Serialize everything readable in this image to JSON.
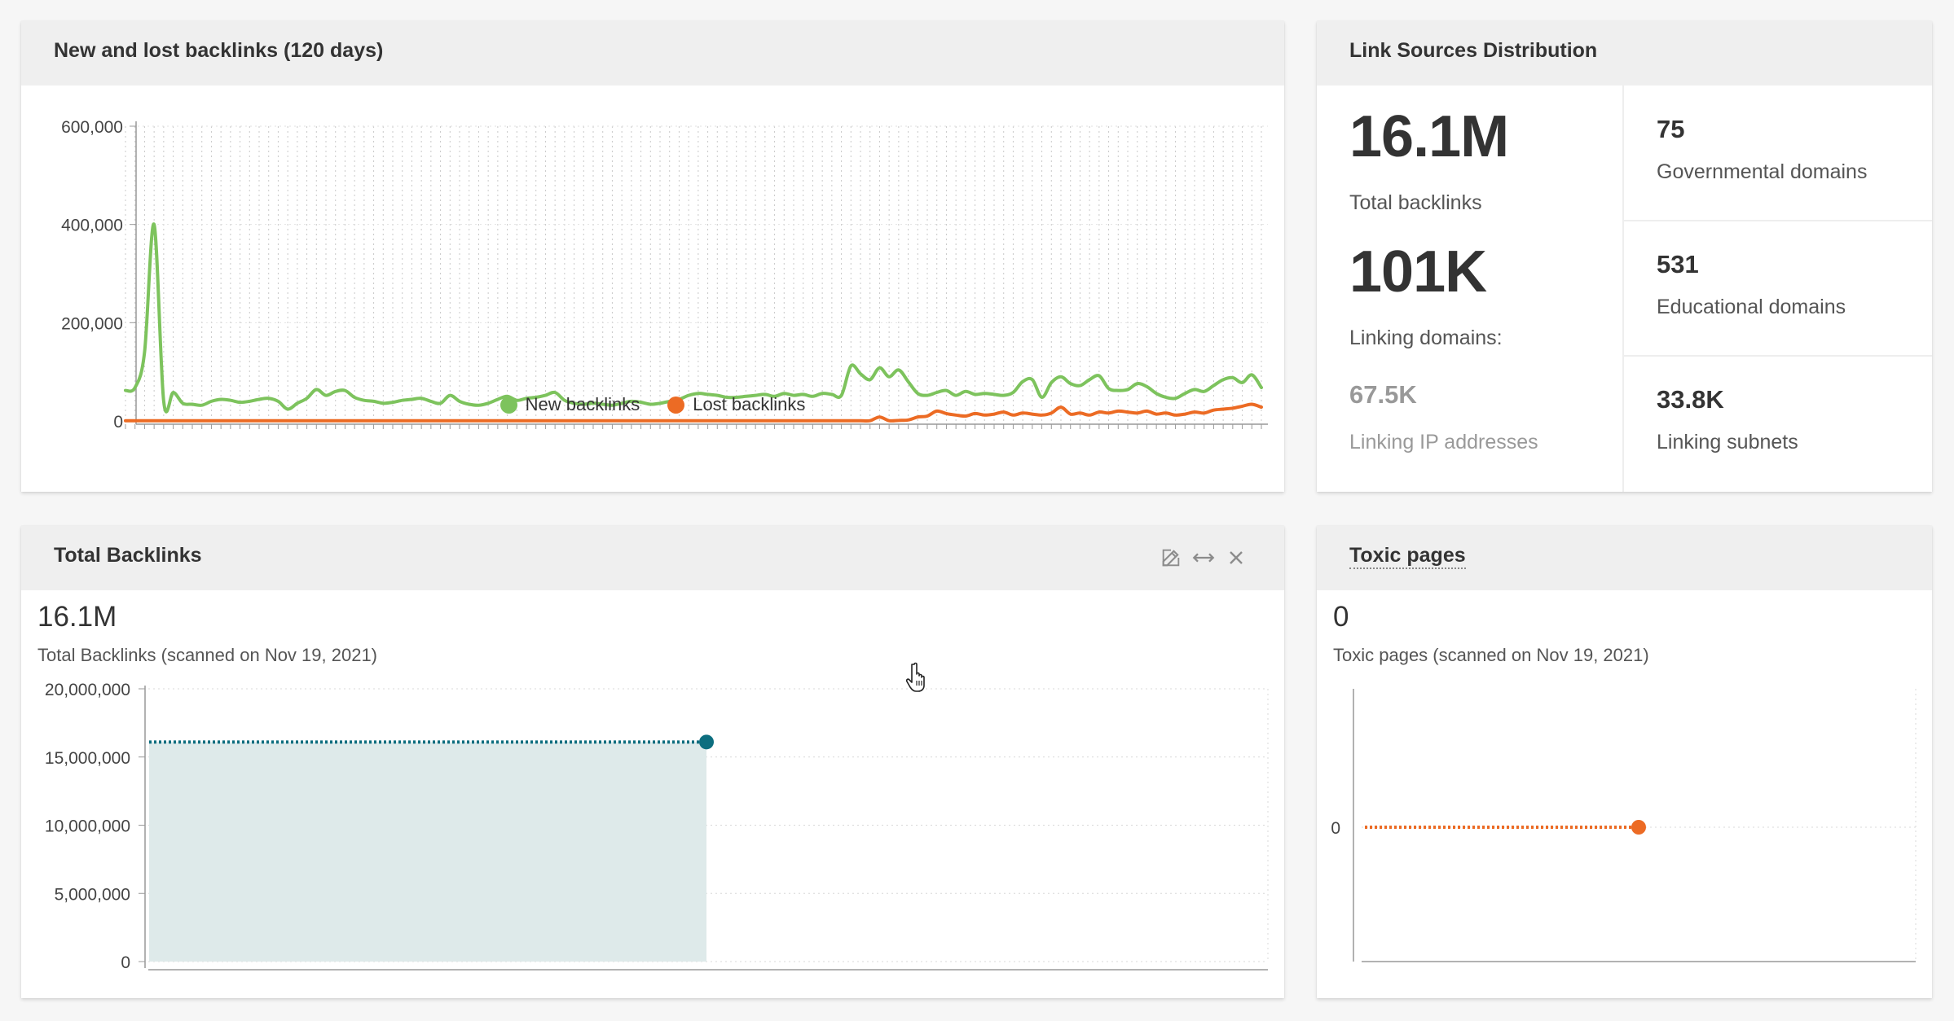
{
  "backlinks_card": {
    "title": "New and lost backlinks (120 days)",
    "legend": [
      {
        "label": "New backlinks",
        "color": "#7dc35d"
      },
      {
        "label": "Lost backlinks",
        "color": "#ec6b24"
      }
    ]
  },
  "link_sources": {
    "title": "Link Sources Distribution",
    "total_backlinks_value": "16.1M",
    "total_backlinks_label": "Total backlinks",
    "linking_domains_value": "101K",
    "linking_domains_label": "Linking domains:",
    "linking_ips_value": "67.5K",
    "linking_ips_label": "Linking IP addresses",
    "gov_value": "75",
    "gov_label": "Governmental domains",
    "edu_value": "531",
    "edu_label": "Educational domains",
    "subnets_value": "33.8K",
    "subnets_label": "Linking subnets"
  },
  "total_backlinks_card": {
    "title": "Total Backlinks",
    "value": "16.1M",
    "label": "Total Backlinks (scanned on Nov 19, 2021)",
    "actions": {
      "edit_icon": "edit-icon",
      "resize_icon": "resize-horizontal-icon",
      "close_icon": "close-icon"
    }
  },
  "toxic_card": {
    "title": "Toxic pages",
    "value": "0",
    "label": "Toxic pages (scanned on Nov 19, 2021)"
  },
  "colors": {
    "new": "#7dc35d",
    "lost": "#ec6b24",
    "total": "#0d6e7f",
    "total_fill": "#deeaea",
    "toxic": "#ec6b24"
  },
  "chart_data": [
    {
      "type": "line",
      "title": "New and lost backlinks (120 days)",
      "x": [
        1,
        2,
        3,
        4,
        5,
        6,
        7,
        8,
        9,
        10,
        11,
        12,
        13,
        14,
        15,
        16,
        17,
        18,
        19,
        20,
        21,
        22,
        23,
        24,
        25,
        26,
        27,
        28,
        29,
        30,
        31,
        32,
        33,
        34,
        35,
        36,
        37,
        38,
        39,
        40,
        41,
        42,
        43,
        44,
        45,
        46,
        47,
        48,
        49,
        50,
        51,
        52,
        53,
        54,
        55,
        56,
        57,
        58,
        59,
        60,
        61,
        62,
        63,
        64,
        65,
        66,
        67,
        68,
        69,
        70,
        71,
        72,
        73,
        74,
        75,
        76,
        77,
        78,
        79,
        80,
        81,
        82,
        83,
        84,
        85,
        86,
        87,
        88,
        89,
        90,
        91,
        92,
        93,
        94,
        95,
        96,
        97,
        98,
        99,
        100,
        101,
        102,
        103,
        104,
        105,
        106,
        107,
        108,
        109,
        110,
        111,
        112,
        113,
        114,
        115,
        116,
        117,
        118,
        119,
        120
      ],
      "y_ticks": [
        "0",
        "200,000",
        "400,000",
        "600,000"
      ],
      "ylim": [
        0,
        600000
      ],
      "grid": true,
      "legend_position": "bottom",
      "series": [
        {
          "name": "New backlinks",
          "values": [
            62000,
            68000,
            140000,
            400000,
            40000,
            58000,
            36000,
            34000,
            32000,
            40000,
            44000,
            42000,
            38000,
            40000,
            44000,
            46000,
            40000,
            24000,
            36000,
            46000,
            64000,
            52000,
            60000,
            62000,
            48000,
            42000,
            40000,
            36000,
            38000,
            42000,
            44000,
            46000,
            40000,
            36000,
            52000,
            40000,
            34000,
            32000,
            36000,
            44000,
            50000,
            42000,
            46000,
            48000,
            52000,
            58000,
            42000,
            36000,
            34000,
            36000,
            34000,
            32000,
            36000,
            40000,
            38000,
            34000,
            36000,
            40000,
            44000,
            52000,
            56000,
            54000,
            52000,
            48000,
            48000,
            50000,
            52000,
            54000,
            50000,
            56000,
            52000,
            54000,
            50000,
            56000,
            54000,
            52000,
            112000,
            96000,
            84000,
            108000,
            90000,
            104000,
            80000,
            56000,
            52000,
            58000,
            62000,
            52000,
            60000,
            54000,
            56000,
            54000,
            52000,
            58000,
            80000,
            84000,
            48000,
            78000,
            90000,
            76000,
            72000,
            84000,
            92000,
            66000,
            62000,
            64000,
            76000,
            70000,
            56000,
            48000,
            46000,
            56000,
            64000,
            60000,
            72000,
            84000,
            88000,
            78000,
            94000,
            68000
          ]
        },
        {
          "name": "Lost backlinks",
          "values": [
            500,
            500,
            500,
            500,
            500,
            500,
            500,
            500,
            500,
            500,
            500,
            500,
            500,
            500,
            500,
            500,
            500,
            500,
            500,
            500,
            500,
            500,
            500,
            500,
            500,
            500,
            500,
            500,
            500,
            500,
            500,
            500,
            500,
            500,
            500,
            500,
            500,
            500,
            500,
            500,
            500,
            500,
            500,
            500,
            500,
            500,
            500,
            500,
            500,
            500,
            500,
            500,
            500,
            500,
            500,
            500,
            500,
            500,
            500,
            500,
            500,
            500,
            500,
            500,
            500,
            500,
            500,
            500,
            500,
            500,
            500,
            500,
            500,
            500,
            500,
            500,
            500,
            500,
            500,
            8000,
            500,
            1000,
            2000,
            8000,
            10000,
            20000,
            15000,
            12000,
            10000,
            15000,
            12000,
            14000,
            18000,
            12000,
            16000,
            14000,
            12000,
            16000,
            28000,
            14000,
            16000,
            12000,
            18000,
            16000,
            20000,
            18000,
            16000,
            20000,
            14000,
            16000,
            12000,
            14000,
            18000,
            16000,
            22000,
            24000,
            26000,
            30000,
            34000,
            28000
          ]
        }
      ]
    },
    {
      "type": "area",
      "title": "Total Backlinks",
      "y_ticks": [
        "0",
        "5,000,000",
        "10,000,000",
        "15,000,000",
        "20,000,000"
      ],
      "ylim": [
        0,
        20000000
      ],
      "grid": true,
      "series": [
        {
          "values": [
            16100000,
            16100000
          ]
        }
      ]
    },
    {
      "type": "line",
      "title": "Toxic pages",
      "y_ticks": [
        "0"
      ],
      "grid": true,
      "series": [
        {
          "values": [
            0,
            0
          ]
        }
      ]
    }
  ]
}
